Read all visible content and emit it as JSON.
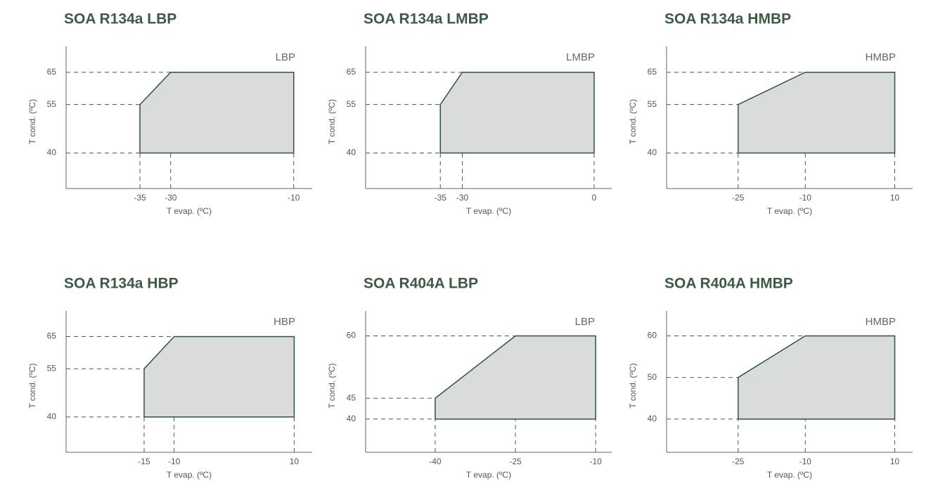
{
  "chart_data": [
    {
      "type": "envelope",
      "title": "SOA R134a LBP",
      "annotation": "LBP",
      "xlabel": "T evap. (ºC)",
      "ylabel": "T cond. (ºC)",
      "x": [
        -35,
        -35,
        -30,
        -10,
        -10
      ],
      "values": [
        40,
        55,
        65,
        65,
        40
      ],
      "xlim": [
        -47,
        -7
      ],
      "ylim": [
        29,
        73
      ],
      "xticks": [
        -35,
        -30,
        -10
      ],
      "yticks": [
        40,
        55,
        65
      ],
      "color": "#2e5340",
      "fill": "#d9dcdb"
    },
    {
      "type": "envelope",
      "title": "SOA R134a LMBP",
      "annotation": "LMBP",
      "xlabel": "T evap. (ºC)",
      "ylabel": "T cond. (ºC)",
      "x": [
        -35,
        -35,
        -30,
        0,
        0
      ],
      "values": [
        40,
        55,
        65,
        65,
        40
      ],
      "xlim": [
        -52,
        4
      ],
      "ylim": [
        29,
        73
      ],
      "xticks": [
        -35,
        -30,
        0
      ],
      "yticks": [
        40,
        55,
        65
      ],
      "color": "#2e5340",
      "fill": "#d9dcdb"
    },
    {
      "type": "envelope",
      "title": "SOA R134a HMBP",
      "annotation": "HMBP",
      "xlabel": "T evap. (ºC)",
      "ylabel": "T cond. (ºC)",
      "x": [
        -25,
        -25,
        -10,
        10,
        10
      ],
      "values": [
        40,
        55,
        65,
        65,
        40
      ],
      "xlim": [
        -41,
        14
      ],
      "ylim": [
        29,
        73
      ],
      "xticks": [
        -25,
        -10,
        10
      ],
      "yticks": [
        40,
        55,
        65
      ],
      "color": "#2e5340",
      "fill": "#d9dcdb"
    },
    {
      "type": "envelope",
      "title": "SOA R134a HBP",
      "annotation": "HBP",
      "xlabel": "T evap. (ºC)",
      "ylabel": "T cond. (ºC)",
      "x": [
        -15,
        -15,
        -10,
        10,
        10
      ],
      "values": [
        40,
        55,
        65,
        65,
        40
      ],
      "xlim": [
        -28,
        13
      ],
      "ylim": [
        29,
        73
      ],
      "xticks": [
        -15,
        -10,
        10
      ],
      "yticks": [
        40,
        55,
        65
      ],
      "color": "#2e5340",
      "fill": "#d9dcdb"
    },
    {
      "type": "envelope",
      "title": "SOA R404A LBP",
      "annotation": "LBP",
      "xlabel": "T evap. (ºC)",
      "ylabel": "T cond. (ºC)",
      "x": [
        -40,
        -40,
        -25,
        -10,
        -10
      ],
      "values": [
        40,
        45,
        60,
        60,
        40
      ],
      "xlim": [
        -53,
        -7
      ],
      "ylim": [
        32,
        66
      ],
      "xticks": [
        -40,
        -25,
        -10
      ],
      "yticks": [
        40,
        45,
        60
      ],
      "color": "#2e5340",
      "fill": "#d9dcdb"
    },
    {
      "type": "envelope",
      "title": "SOA R404A HMBP",
      "annotation": "HMBP",
      "xlabel": "T evap. (ºC)",
      "ylabel": "T cond. (ºC)",
      "x": [
        -25,
        -25,
        -10,
        10,
        10
      ],
      "values": [
        40,
        50,
        60,
        60,
        40
      ],
      "xlim": [
        -41,
        14
      ],
      "ylim": [
        32,
        66
      ],
      "xticks": [
        -25,
        -10,
        10
      ],
      "yticks": [
        40,
        50,
        60
      ],
      "color": "#2e5340",
      "fill": "#d9dcdb"
    }
  ]
}
